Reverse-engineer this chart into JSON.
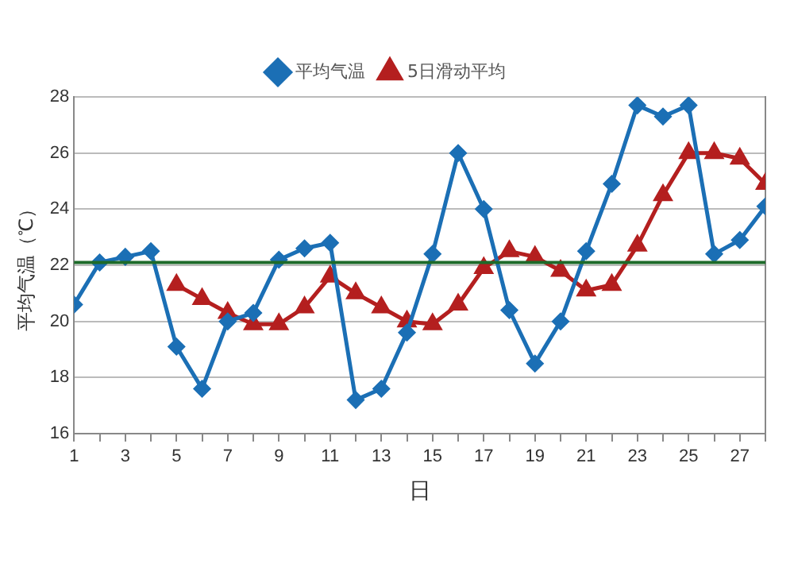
{
  "chart_data": {
    "type": "line",
    "xlabel": "日",
    "ylabel": "平均气温（℃）",
    "x": [
      1,
      2,
      3,
      4,
      5,
      6,
      7,
      8,
      9,
      10,
      11,
      12,
      13,
      14,
      15,
      16,
      17,
      18,
      19,
      20,
      21,
      22,
      23,
      24,
      25,
      26,
      27,
      28
    ],
    "xlim": [
      1,
      28
    ],
    "xticks": [
      1,
      {
        "value": 2,
        "label": null
      },
      3,
      {
        "value": 4,
        "label": null
      },
      5,
      {
        "value": 6,
        "label": null
      },
      7,
      {
        "value": 8,
        "label": null
      },
      9,
      {
        "value": 10,
        "label": null
      },
      11,
      {
        "value": 12,
        "label": null
      },
      13,
      {
        "value": 14,
        "label": null
      },
      15,
      {
        "value": 16,
        "label": null
      },
      17,
      {
        "value": 18,
        "label": null
      },
      19,
      {
        "value": 20,
        "label": null
      },
      21,
      {
        "value": 22,
        "label": null
      },
      23,
      {
        "value": 24,
        "label": null
      },
      25,
      {
        "value": 26,
        "label": null
      },
      27,
      {
        "value": 28,
        "label": null
      }
    ],
    "ylim": [
      16,
      28
    ],
    "yticks": [
      16,
      18,
      20,
      22,
      24,
      26,
      28
    ],
    "series": [
      {
        "name": "平均气温",
        "color": "#1b6fb5",
        "marker": "diamond",
        "values": [
          20.6,
          22.1,
          22.3,
          22.5,
          19.1,
          17.6,
          20.0,
          20.3,
          22.2,
          22.6,
          22.8,
          17.2,
          17.6,
          19.6,
          22.4,
          26.0,
          24.0,
          20.4,
          18.5,
          20.0,
          22.5,
          24.9,
          27.7,
          27.3,
          27.7,
          22.4,
          22.9,
          24.1
        ]
      },
      {
        "name": "5日滑动平均",
        "color": "#b41f1f",
        "marker": "triangle",
        "values": [
          null,
          null,
          null,
          null,
          21.3,
          20.8,
          20.3,
          19.9,
          19.9,
          20.5,
          21.6,
          21.0,
          20.5,
          20.0,
          19.9,
          20.6,
          21.9,
          22.5,
          22.3,
          21.8,
          21.1,
          21.3,
          22.7,
          24.5,
          26.0,
          26.0,
          25.8,
          24.9
        ]
      }
    ],
    "ref_lines": [
      {
        "axis": "y",
        "value": 22.1,
        "color": "#1e6b2a"
      }
    ],
    "grid": "y",
    "legend": "top",
    "line_style": "solid"
  }
}
